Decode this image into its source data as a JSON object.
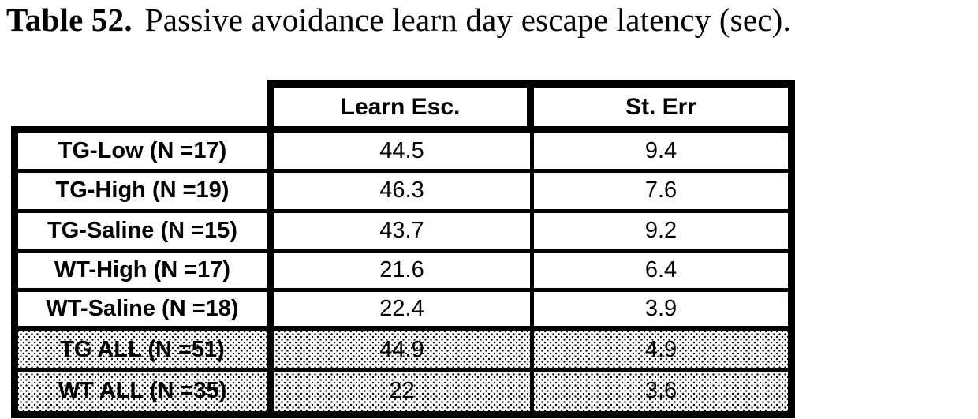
{
  "caption": {
    "label": "Table 52.",
    "text": "Passive avoidance learn day escape latency (sec)."
  },
  "table": {
    "columns": [
      "Learn Esc.",
      "St. Err"
    ],
    "rows": [
      {
        "label": "TG-Low (N =17)",
        "learn_esc": "44.5",
        "st_err": "9.4"
      },
      {
        "label": "TG-High (N =19)",
        "learn_esc": "46.3",
        "st_err": "7.6"
      },
      {
        "label": "TG-Saline (N =15)",
        "learn_esc": "43.7",
        "st_err": "9.2"
      },
      {
        "label": "WT-High (N =17)",
        "learn_esc": "21.6",
        "st_err": "6.4"
      },
      {
        "label": "WT-Saline (N =18)",
        "learn_esc": "22.4",
        "st_err": "3.9"
      },
      {
        "label": "TG ALL (N =51)",
        "learn_esc": "44.9",
        "st_err": "4.9"
      },
      {
        "label": "WT ALL (N =35)",
        "learn_esc": "22",
        "st_err": "3.6"
      }
    ],
    "shaded_row_labels": [
      "TG ALL (N =51)",
      "WT ALL (N =35)"
    ]
  },
  "colors": {
    "border": "#000000",
    "text": "#000000",
    "background": "#ffffff",
    "shaded_dot": "#000000"
  }
}
